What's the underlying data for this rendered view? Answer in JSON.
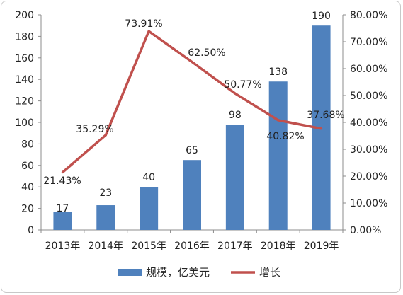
{
  "chart_data": {
    "type": "bar",
    "categories": [
      "2013年",
      "2014年",
      "2015年",
      "2016年",
      "2017年",
      "2018年",
      "2019年"
    ],
    "series": [
      {
        "name": "规模，亿美元",
        "type": "bar",
        "axis": "left",
        "values": [
          17,
          23,
          40,
          65,
          98,
          138,
          190
        ],
        "labels": [
          "17",
          "23",
          "40",
          "65",
          "98",
          "138",
          "190"
        ],
        "color": "#4f81bd"
      },
      {
        "name": "增长",
        "type": "line",
        "axis": "right",
        "values": [
          21.43,
          35.29,
          73.91,
          62.5,
          50.77,
          40.82,
          37.68
        ],
        "labels": [
          "21.43%",
          "35.29%",
          "73.91%",
          "62.50%",
          "50.77%",
          "40.82%",
          "37.68%"
        ],
        "color": "#c0504d"
      }
    ],
    "y_left": {
      "ylim": [
        0,
        200
      ],
      "ticks": [
        "0",
        "20",
        "40",
        "60",
        "80",
        "100",
        "120",
        "140",
        "160",
        "180",
        "200"
      ]
    },
    "y_right": {
      "ylim": [
        0,
        80
      ],
      "ticks": [
        "0.00%",
        "10.00%",
        "20.00%",
        "30.00%",
        "40.00%",
        "50.00%",
        "60.00%",
        "70.00%",
        "80.00%"
      ]
    },
    "grid": false,
    "legend_position": "bottom"
  }
}
